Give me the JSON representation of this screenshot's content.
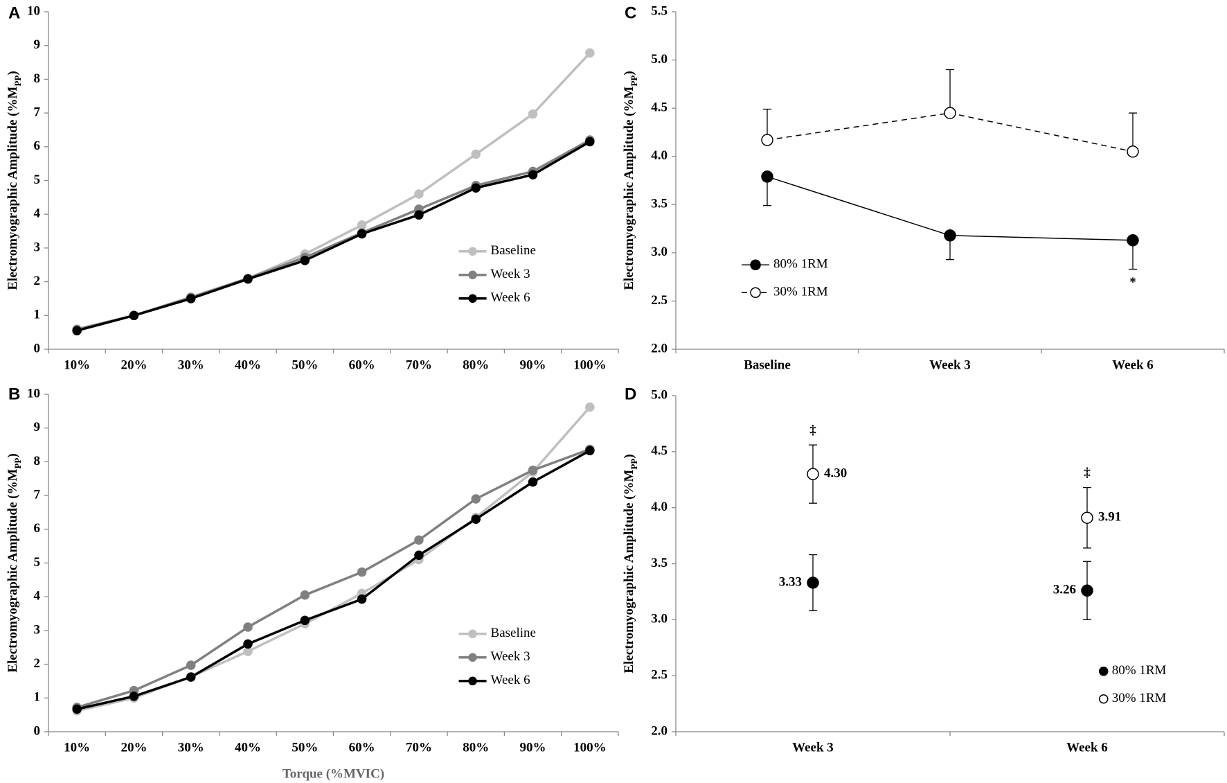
{
  "chart_data": [
    {
      "type": "line",
      "panel": "A",
      "ylabel": [
        "Electromyographic Amplitude (%M",
        "PP",
        ")"
      ],
      "categories": [
        "10%",
        "20%",
        "30%",
        "40%",
        "50%",
        "60%",
        "70%",
        "80%",
        "90%",
        "100%"
      ],
      "series": [
        {
          "name": "Baseline",
          "color": "#bfbfbf",
          "values": [
            0.6,
            1.0,
            1.55,
            2.1,
            2.82,
            3.68,
            4.6,
            5.78,
            6.97,
            8.78
          ]
        },
        {
          "name": "Week 3",
          "color": "#808080",
          "values": [
            0.58,
            1.0,
            1.53,
            2.1,
            2.72,
            3.45,
            4.15,
            4.85,
            5.27,
            6.2
          ]
        },
        {
          "name": "Week 6",
          "color": "#000000",
          "values": [
            0.55,
            1.0,
            1.5,
            2.08,
            2.63,
            3.42,
            3.98,
            4.78,
            5.17,
            6.15
          ]
        }
      ],
      "ylim": [
        0,
        10
      ],
      "yticks": [
        0,
        1,
        2,
        3,
        4,
        5,
        6,
        7,
        8,
        9,
        10
      ],
      "grid": false,
      "legend": "center-right"
    },
    {
      "type": "line",
      "panel": "B",
      "ylabel": [
        "Electromyographic Amplitude (%M",
        "PP",
        ")"
      ],
      "xlabel": "Torque (%MVIC)",
      "categories": [
        "10%",
        "20%",
        "30%",
        "40%",
        "50%",
        "60%",
        "70%",
        "80%",
        "90%",
        "100%"
      ],
      "series": [
        {
          "name": "Baseline",
          "color": "#bfbfbf",
          "values": [
            0.62,
            1.0,
            1.63,
            2.38,
            3.2,
            4.1,
            5.1,
            6.35,
            7.7,
            9.62
          ]
        },
        {
          "name": "Week 3",
          "color": "#808080",
          "values": [
            0.72,
            1.22,
            1.97,
            3.1,
            4.05,
            4.73,
            5.68,
            6.9,
            7.75,
            8.37
          ]
        },
        {
          "name": "Week 6",
          "color": "#000000",
          "values": [
            0.67,
            1.05,
            1.62,
            2.6,
            3.3,
            3.93,
            5.23,
            6.3,
            7.4,
            8.33
          ]
        }
      ],
      "ylim": [
        0,
        10
      ],
      "yticks": [
        0,
        1,
        2,
        3,
        4,
        5,
        6,
        7,
        8,
        9,
        10
      ],
      "grid": false,
      "legend": "center-right"
    },
    {
      "type": "line",
      "panel": "C",
      "ylabel": [
        "Electromyographic Amplitude (%M",
        "PP",
        ")"
      ],
      "categories": [
        "Baseline",
        "Week 3",
        "Week 6"
      ],
      "series": [
        {
          "name": "80% 1RM",
          "color": "#000000",
          "marker_fill": "#000000",
          "line_style": "solid",
          "values": [
            3.79,
            3.18,
            3.13
          ],
          "errors": [
            0.3,
            0.25,
            0.3
          ],
          "error_direction": "down",
          "annotations": [
            null,
            null,
            "*"
          ]
        },
        {
          "name": "30% 1RM",
          "color": "#000000",
          "marker_fill": "#ffffff",
          "line_style": "dashed",
          "values": [
            4.17,
            4.45,
            4.05
          ],
          "errors": [
            0.32,
            0.45,
            0.4
          ],
          "error_direction": "up"
        }
      ],
      "ylim": [
        2.0,
        5.5
      ],
      "yticks": [
        {
          "value": 2,
          "label": "2.0"
        },
        2.5,
        {
          "value": 3,
          "label": "3.0"
        },
        3.5,
        {
          "value": 4,
          "label": "4.0"
        },
        4.5,
        {
          "value": 5,
          "label": "5.0"
        },
        5.5
      ],
      "grid": false,
      "legend": "lower-left"
    },
    {
      "type": "scatter",
      "panel": "D",
      "ylabel": [
        "Electromyographic Amplitude (%M",
        "PP",
        ")"
      ],
      "categories": [
        "Week 3",
        "Week 6"
      ],
      "series": [
        {
          "name": "80% 1RM",
          "color": "#000000",
          "marker_fill": "#000000",
          "values": [
            3.33,
            3.26
          ],
          "value_labels": [
            "3.33",
            "3.26"
          ],
          "errors": [
            0.25,
            0.26
          ],
          "error_direction": "both"
        },
        {
          "name": "30% 1RM",
          "color": "#000000",
          "marker_fill": "#ffffff",
          "values": [
            4.3,
            3.91
          ],
          "value_labels": [
            "4.30",
            "3.91"
          ],
          "errors": [
            0.26,
            0.27
          ],
          "error_direction": "both",
          "annotations": [
            "‡",
            "‡"
          ]
        }
      ],
      "ylim": [
        2.0,
        5.0
      ],
      "yticks": [
        {
          "value": 2,
          "label": "2.0"
        },
        2.5,
        {
          "value": 3,
          "label": "3.0"
        },
        3.5,
        {
          "value": 4,
          "label": "4.0"
        },
        4.5,
        {
          "value": 5,
          "label": "5.0"
        }
      ],
      "grid": false,
      "legend": "lower-right"
    }
  ]
}
